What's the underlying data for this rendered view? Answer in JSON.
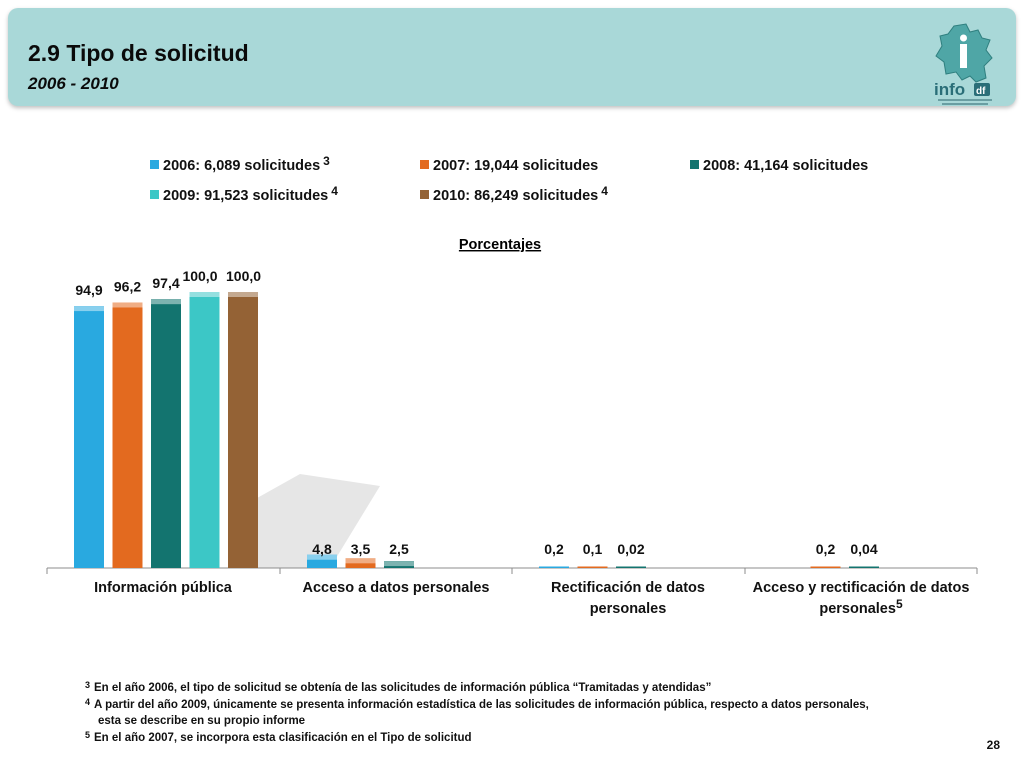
{
  "header": {
    "title": "2.9 Tipo de solicitud",
    "subtitle": "2006 - 2010",
    "logo_text": "info"
  },
  "legend": [
    {
      "label": "2006: 6,089 solicitudes",
      "sup": "3",
      "color": "#29a9e0"
    },
    {
      "label": "2007: 19,044 solicitudes",
      "sup": "",
      "color": "#e36a1f"
    },
    {
      "label": "2008: 41,164 solicitudes",
      "sup": "",
      "color": "#13746f"
    },
    {
      "label": "2009: 91,523 solicitudes",
      "sup": "4",
      "color": "#3cc7c6"
    },
    {
      "label": "2010: 86,249 solicitudes",
      "sup": "4",
      "color": "#946235"
    }
  ],
  "chart_data": {
    "type": "bar",
    "title": "Porcentajes",
    "categories": [
      {
        "label": "Información pública",
        "sup": ""
      },
      {
        "label": "Acceso a datos personales",
        "sup": ""
      },
      {
        "label": "Rectificación de datos personales",
        "sup": ""
      },
      {
        "label": "Acceso y rectificación de datos personales",
        "sup": "5"
      }
    ],
    "series": [
      {
        "name": "2006: 6,089 solicitudes",
        "color": "#29a9e0",
        "values": [
          94.9,
          4.8,
          0.2,
          null
        ],
        "labels": [
          "94,9",
          "4,8",
          "0,2",
          null
        ]
      },
      {
        "name": "2007: 19,044 solicitudes",
        "color": "#e36a1f",
        "values": [
          96.2,
          3.5,
          0.1,
          0.2
        ],
        "labels": [
          "96,2",
          "3,5",
          "0,1",
          "0,2"
        ]
      },
      {
        "name": "2008: 41,164 solicitudes",
        "color": "#13746f",
        "values": [
          97.4,
          2.5,
          0.02,
          0.04
        ],
        "labels": [
          "97,4",
          "2,5",
          "0,02",
          "0,04"
        ]
      },
      {
        "name": "2009: 91,523 solicitudes",
        "color": "#3cc7c6",
        "values": [
          100.0,
          null,
          null,
          null
        ],
        "labels": [
          "100,0",
          null,
          null,
          null
        ]
      },
      {
        "name": "2010: 86,249 solicitudes",
        "color": "#946235",
        "values": [
          100.0,
          null,
          null,
          null
        ],
        "labels": [
          "100,0",
          null,
          null,
          null
        ]
      }
    ],
    "ylim": [
      0,
      100
    ],
    "grid": false,
    "legend_position": "top"
  },
  "footnotes": [
    {
      "sup": "3",
      "text": "En el año 2006, el tipo de solicitud se obtenía  de las solicitudes de información pública “Tramitadas y atendidas”"
    },
    {
      "sup": "4",
      "text": "A partir del año 2009, únicamente se presenta información estadística de las solicitudes de información pública, respecto a datos personales,"
    },
    {
      "sup": "",
      "text": "esta se describe en su propio informe"
    },
    {
      "sup": "5",
      "text": "En el año 2007, se incorpora esta clasificación en el Tipo de solicitud"
    }
  ],
  "page_number": "28"
}
